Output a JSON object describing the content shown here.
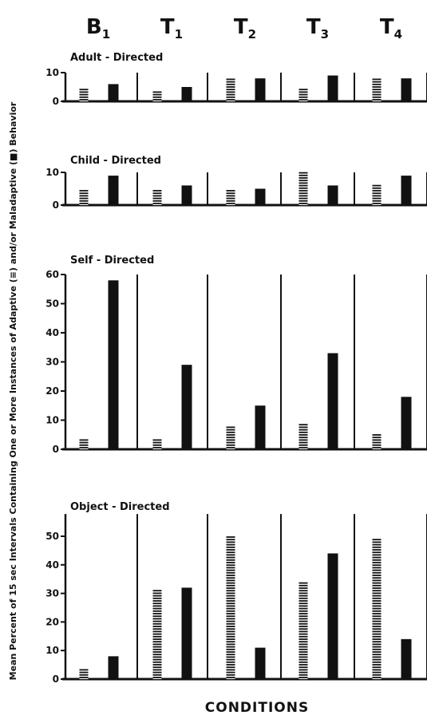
{
  "chart_data": {
    "type": "bar",
    "ylabel": "Mean Percent of 15 sec Intervals Containing One or More Instances of Adaptive (≡) and/or Maladaptive (■) Behavior",
    "xlabel": "CONDITIONS",
    "conditions": [
      {
        "main": "B",
        "sub": "1"
      },
      {
        "main": "T",
        "sub": "1"
      },
      {
        "main": "T",
        "sub": "2"
      },
      {
        "main": "T",
        "sub": "3"
      },
      {
        "main": "T",
        "sub": "4"
      }
    ],
    "series_legend": [
      {
        "name": "Adaptive",
        "pattern": "hatched"
      },
      {
        "name": "Maladaptive",
        "pattern": "solid"
      }
    ],
    "panels": [
      {
        "title": "Adult - Directed",
        "ylim": [
          0,
          10
        ],
        "yticks": [
          "0",
          "10"
        ],
        "adaptive": [
          5,
          4,
          8,
          5,
          8
        ],
        "maladaptive": [
          6,
          5,
          8,
          9,
          8
        ]
      },
      {
        "title": "Child - Directed",
        "ylim": [
          0,
          10
        ],
        "yticks": [
          "0",
          "10"
        ],
        "adaptive": [
          5,
          5,
          5,
          10,
          6
        ],
        "maladaptive": [
          9,
          6,
          5,
          6,
          9
        ]
      },
      {
        "title": "Self - Directed",
        "ylim": [
          0,
          60
        ],
        "yticks": [
          "0",
          "10",
          "20",
          "30",
          "40",
          "50",
          "60"
        ],
        "adaptive": [
          4,
          4,
          8,
          9,
          5
        ],
        "maladaptive": [
          58,
          29,
          15,
          33,
          18
        ]
      },
      {
        "title": "Object - Directed",
        "ylim": [
          0,
          55
        ],
        "yticks": [
          "0",
          "10",
          "20",
          "30",
          "40",
          "50"
        ],
        "adaptive": [
          4,
          31,
          50,
          34,
          49
        ],
        "maladaptive": [
          8,
          32,
          11,
          44,
          14
        ]
      }
    ]
  }
}
